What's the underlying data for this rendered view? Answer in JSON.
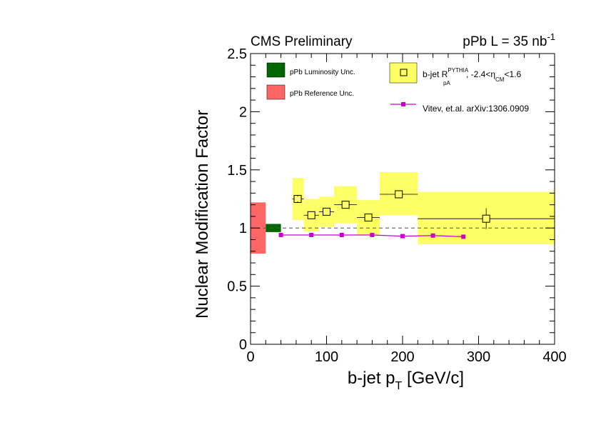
{
  "header": {
    "left": "CMS Preliminary",
    "right_main": "pPb L = 35 nb",
    "right_sup": "-1"
  },
  "chart_data": {
    "type": "scatter",
    "xlabel_main": "b-jet p",
    "xlabel_sub": "T",
    "xlabel_tail": " [GeV/c]",
    "ylabel": "Nuclear Modification Factor",
    "xlim": [
      0,
      400
    ],
    "ylim": [
      0,
      2.5
    ],
    "x_ticks": [
      "0",
      "100",
      "200",
      "300",
      "400"
    ],
    "y_ticks": [
      "0",
      "0.5",
      "1",
      "1.5",
      "2",
      "2.5"
    ],
    "reference_line": 1.0,
    "colors": {
      "data_band": "#ffff66",
      "luminosity": "#006600",
      "reference": "#ff6666",
      "theory": "#cc00cc"
    },
    "series": [
      {
        "legend_main": "b-jet R",
        "legend_sup": "PYTHIA",
        "legend_sub": "pA",
        "legend_mid": ", -2.4<η",
        "legend_sub2": "CM",
        "legend_tail": "<1.6",
        "points": [
          {
            "x": 62,
            "xlo": 55,
            "xhi": 70,
            "y": 1.25,
            "stat": 0.02,
            "syslo": 1.07,
            "syshi": 1.43
          },
          {
            "x": 80,
            "xlo": 70,
            "xhi": 90,
            "y": 1.11,
            "stat": 0.03,
            "syslo": 0.97,
            "syshi": 1.25
          },
          {
            "x": 100,
            "xlo": 90,
            "xhi": 110,
            "y": 1.14,
            "stat": 0.03,
            "syslo": 1.01,
            "syshi": 1.27
          },
          {
            "x": 125,
            "xlo": 110,
            "xhi": 140,
            "y": 1.2,
            "stat": 0.03,
            "syslo": 1.04,
            "syshi": 1.36
          },
          {
            "x": 155,
            "xlo": 140,
            "xhi": 170,
            "y": 1.09,
            "stat": 0.03,
            "syslo": 0.94,
            "syshi": 1.24
          },
          {
            "x": 195,
            "xlo": 170,
            "xhi": 220,
            "y": 1.29,
            "stat": 0.03,
            "syslo": 1.11,
            "syshi": 1.48
          },
          {
            "x": 310,
            "xlo": 220,
            "xhi": 400,
            "y": 1.08,
            "stat": 0.09,
            "syslo": 0.86,
            "syshi": 1.31
          }
        ]
      },
      {
        "name": "Vitev, et.al. arXiv:1306.0909",
        "x": [
          40,
          80,
          120,
          160,
          200,
          240,
          280
        ],
        "y": [
          0.94,
          0.94,
          0.94,
          0.94,
          0.93,
          0.935,
          0.925
        ]
      }
    ],
    "uncertainty_boxes": [
      {
        "name": "pPb Luminosity Unc.",
        "xlo": 20,
        "xhi": 40,
        "ylo": 0.965,
        "yhi": 1.035
      },
      {
        "name": "pPb Reference Unc.",
        "xlo": 0,
        "xhi": 20,
        "ylo": 0.78,
        "yhi": 1.22
      }
    ],
    "legend_position": "top-left inside plot"
  }
}
